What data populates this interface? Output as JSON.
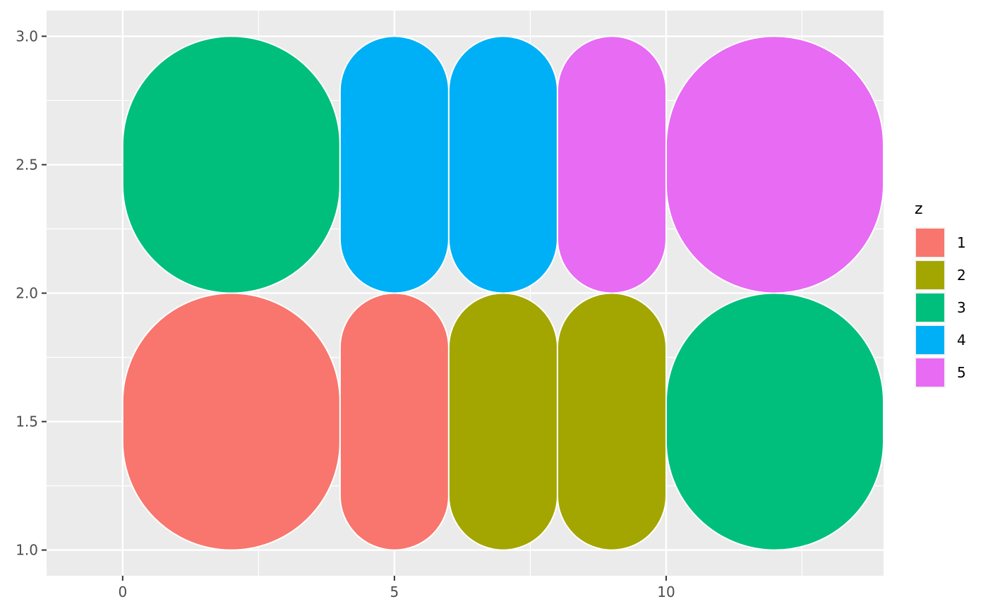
{
  "chart_data": {
    "type": "tile",
    "title": "",
    "xlabel": "",
    "ylabel": "",
    "xlim": [
      -1.4,
      14
    ],
    "ylim": [
      0.9,
      3.1
    ],
    "x_ticks": [
      0,
      5,
      10
    ],
    "x_tick_labels": [
      "0",
      "5",
      "10"
    ],
    "x_minor_ticks": [
      2.5,
      7.5,
      12.5
    ],
    "y_ticks": [
      1.0,
      1.5,
      2.0,
      2.5,
      3.0
    ],
    "y_tick_labels": [
      "1.0",
      "1.5",
      "2.0",
      "2.5",
      "3.0"
    ],
    "y_minor_ticks": [
      1.25,
      1.75,
      2.25,
      2.75
    ],
    "grid": true,
    "panel_background": "#EBEBEB",
    "legend": {
      "title": "z",
      "position": "right",
      "entries": [
        {
          "label": "1",
          "color": "#F8766D"
        },
        {
          "label": "2",
          "color": "#A3A500"
        },
        {
          "label": "3",
          "color": "#00BF7D"
        },
        {
          "label": "4",
          "color": "#00B0F6"
        },
        {
          "label": "5",
          "color": "#E76BF3"
        }
      ]
    },
    "tiles": [
      {
        "x": 2,
        "y": 1.5,
        "width": 4,
        "height": 1,
        "z": "1"
      },
      {
        "x": 5,
        "y": 1.5,
        "width": 2,
        "height": 1,
        "z": "1"
      },
      {
        "x": 7,
        "y": 1.5,
        "width": 2,
        "height": 1,
        "z": "2"
      },
      {
        "x": 9,
        "y": 1.5,
        "width": 2,
        "height": 1,
        "z": "2"
      },
      {
        "x": 12,
        "y": 1.5,
        "width": 4,
        "height": 1,
        "z": "3"
      },
      {
        "x": 2,
        "y": 2.5,
        "width": 4,
        "height": 1,
        "z": "3"
      },
      {
        "x": 5,
        "y": 2.5,
        "width": 2,
        "height": 1,
        "z": "4"
      },
      {
        "x": 7,
        "y": 2.5,
        "width": 2,
        "height": 1,
        "z": "4"
      },
      {
        "x": 9,
        "y": 2.5,
        "width": 2,
        "height": 1,
        "z": "5"
      },
      {
        "x": 12,
        "y": 2.5,
        "width": 4,
        "height": 1,
        "z": "5"
      }
    ]
  }
}
